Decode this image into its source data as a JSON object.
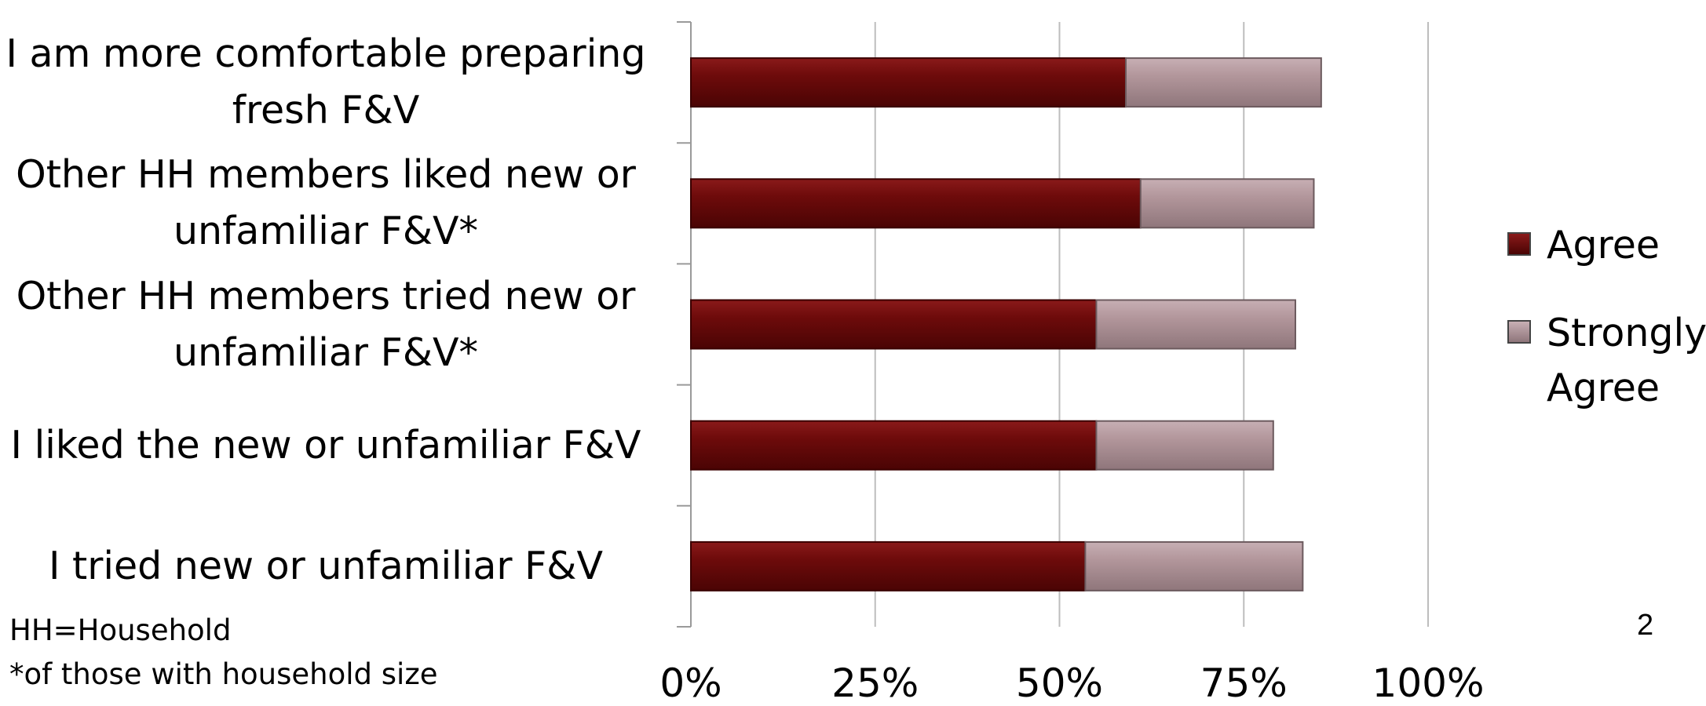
{
  "chart_data": {
    "type": "bar",
    "orientation": "horizontal",
    "stacked": true,
    "categories": [
      "I am more comfortable preparing fresh F&V",
      "Other HH members liked new or unfamiliar F&V*",
      "Other HH members tried new or unfamiliar F&V*",
      "I liked the new or unfamiliar F&V",
      "I tried new or unfamiliar F&V"
    ],
    "series": [
      {
        "name": "Agree",
        "color": "#6b0a0a",
        "values": [
          59,
          61,
          55,
          55,
          53.5
        ]
      },
      {
        "name": "Strongly Agree",
        "color": "#b0949a",
        "values": [
          26.5,
          23.5,
          27,
          24,
          29.5
        ]
      }
    ],
    "xlim": [
      0,
      100
    ],
    "xticks": [
      0,
      25,
      50,
      75,
      100
    ],
    "xtick_labels": [
      "0%",
      "25%",
      "50%",
      "75%",
      "100%"
    ],
    "grid": true,
    "legend_position": "right"
  },
  "footnotes": [
    "HH=Household",
    "*of those with household size"
  ],
  "page_number": "2"
}
